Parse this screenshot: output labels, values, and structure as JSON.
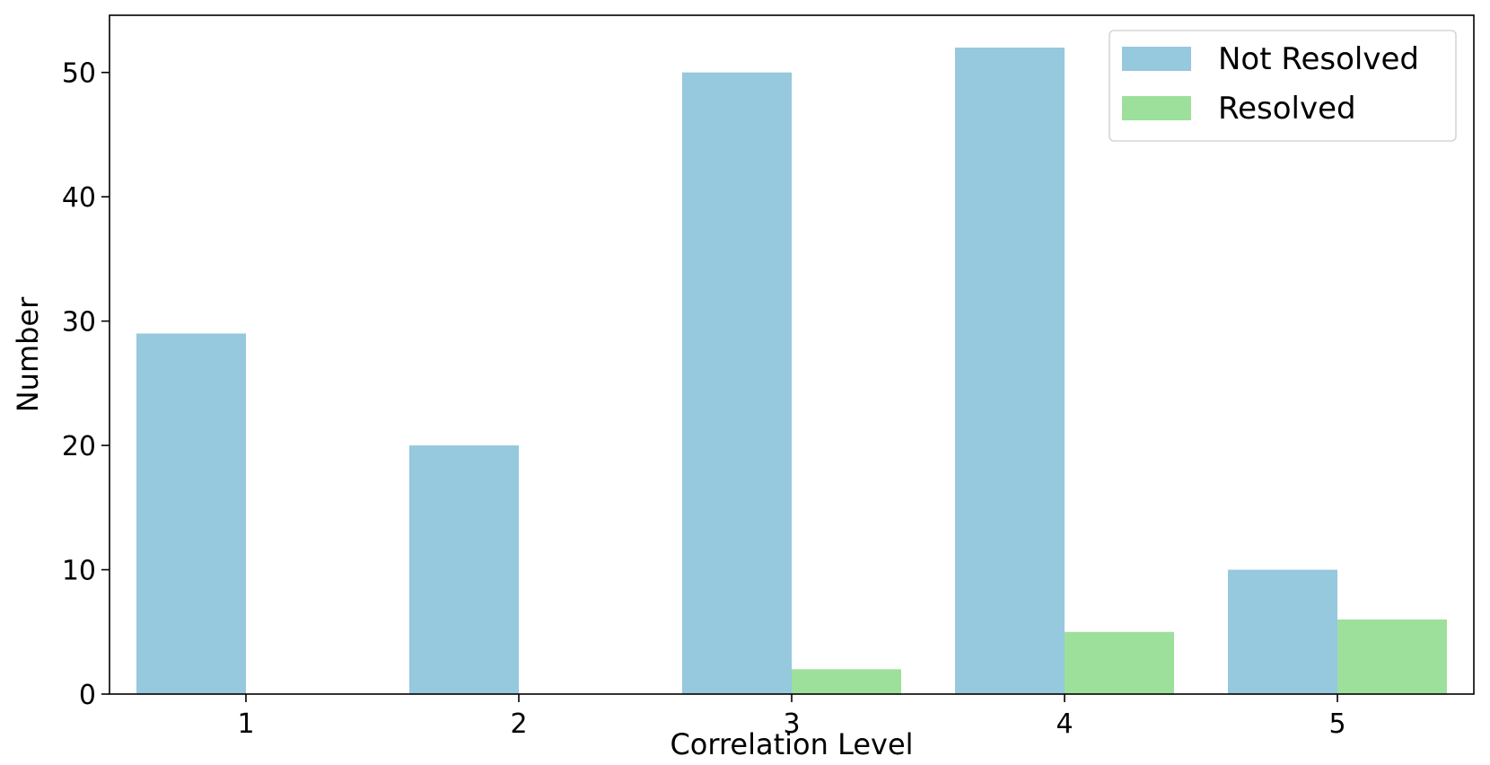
{
  "chart_data": {
    "type": "bar",
    "title": "",
    "xlabel": "Correlation Level",
    "ylabel": "Number",
    "categories": [
      "1",
      "2",
      "3",
      "4",
      "5"
    ],
    "series": [
      {
        "name": "Not Resolved",
        "color": "#96c8de",
        "values": [
          29,
          20,
          50,
          52,
          10
        ]
      },
      {
        "name": "Resolved",
        "color": "#9de09b",
        "values": [
          0,
          0,
          2,
          5,
          6
        ]
      }
    ],
    "ylim": [
      0,
      54.6
    ],
    "yticks": [
      0,
      10,
      20,
      30,
      40,
      50
    ],
    "grid": false,
    "legend_position": "top-right"
  }
}
